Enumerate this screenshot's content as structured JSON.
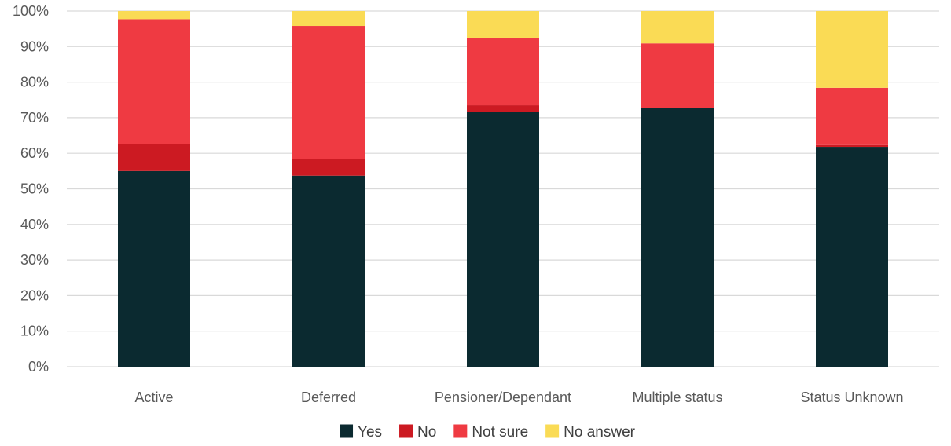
{
  "chart_data": {
    "type": "bar",
    "stacked": true,
    "percent": true,
    "title": "",
    "xlabel": "",
    "ylabel": "",
    "ylim": [
      0,
      100
    ],
    "yticks": [
      "0%",
      "10%",
      "20%",
      "30%",
      "40%",
      "50%",
      "60%",
      "70%",
      "80%",
      "90%",
      "100%"
    ],
    "grid": "horizontal",
    "legend_position": "bottom",
    "categories": [
      "Active",
      "Deferred",
      "Pensioner/Dependant",
      "Multiple status",
      "Status Unknown"
    ],
    "series": [
      {
        "name": "Yes",
        "color": "#0b2a30",
        "values": [
          55.0,
          53.7,
          71.7,
          72.7,
          61.8
        ]
      },
      {
        "name": "No",
        "color": "#cc1a22",
        "values": [
          7.6,
          4.8,
          1.8,
          0.1,
          0.5
        ]
      },
      {
        "name": "Not sure",
        "color": "#ef3a42",
        "values": [
          35.1,
          37.3,
          19.0,
          18.1,
          16.1
        ]
      },
      {
        "name": "No answer",
        "color": "#fadb55",
        "values": [
          2.3,
          4.2,
          7.5,
          9.1,
          21.6
        ]
      }
    ]
  }
}
